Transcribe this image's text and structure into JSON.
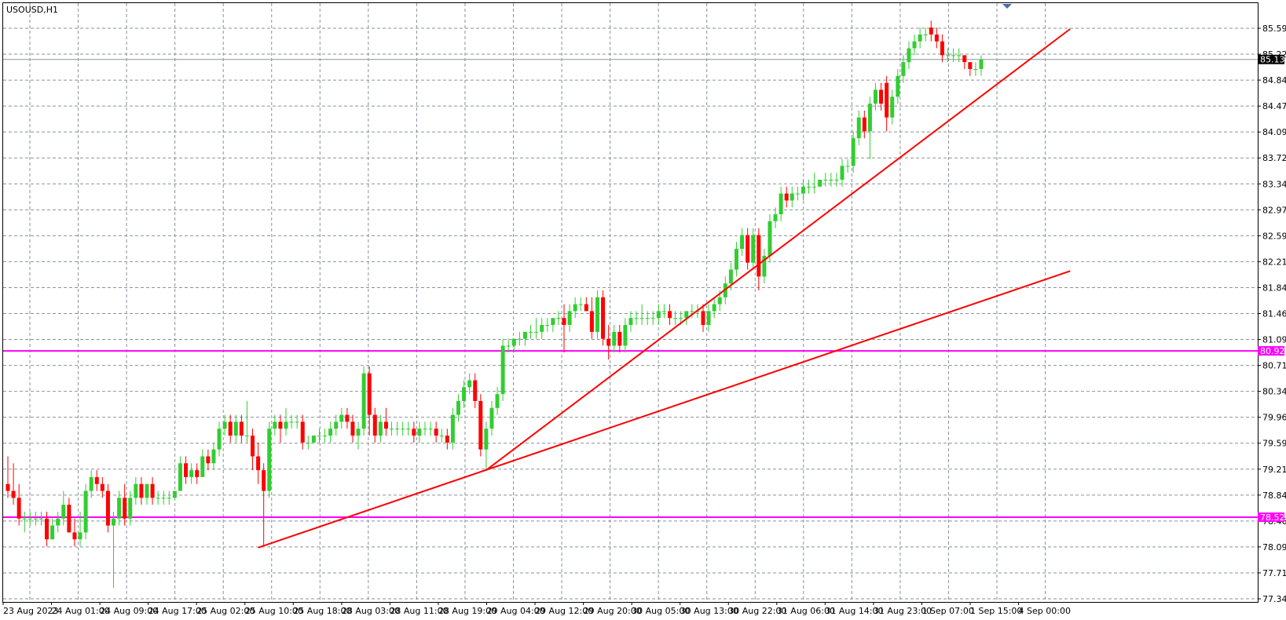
{
  "chart_data": {
    "type": "candlestick",
    "symbol_label": "USOUSD,H1",
    "ylim": [
      77.34,
      85.8
    ],
    "y_ticks": [
      "85.590",
      "85.220",
      "84.840",
      "84.470",
      "84.090",
      "83.720",
      "83.340",
      "82.970",
      "82.590",
      "82.210",
      "81.840",
      "81.460",
      "81.090",
      "80.710",
      "80.340",
      "79.960",
      "79.590",
      "79.210",
      "78.840",
      "78.460",
      "78.090",
      "77.710",
      "77.340"
    ],
    "x_ticks": [
      "23 Aug 2023",
      "24 Aug 01:00",
      "24 Aug 09:00",
      "24 Aug 17:00",
      "25 Aug 02:00",
      "25 Aug 10:00",
      "25 Aug 18:00",
      "28 Aug 03:00",
      "28 Aug 11:00",
      "28 Aug 19:00",
      "29 Aug 04:00",
      "29 Aug 12:00",
      "29 Aug 20:00",
      "30 Aug 05:00",
      "30 Aug 13:00",
      "30 Aug 22:00",
      "31 Aug 06:00",
      "31 Aug 14:00",
      "31 Aug 23:00",
      "1 Sep 07:00",
      "1 Sep 15:00",
      "4 Sep 00:00"
    ],
    "grid": true,
    "colors": {
      "bull": "#32cd32",
      "bear": "#ff0000",
      "trendline": "#ff0000",
      "hline": "#ff00ff",
      "grid": "#8a9299",
      "current_price": "#000000"
    },
    "current_price": "85.139",
    "horizontal_levels": [
      {
        "label": "80.925",
        "value": 80.925
      },
      {
        "label": "78.520",
        "value": 78.52
      }
    ],
    "trendlines": [
      {
        "from_bar": 45,
        "from_price": 78.08,
        "to_bar": 191,
        "to_price": 82.08
      },
      {
        "from_bar": 86,
        "from_price": 79.2,
        "to_bar": 191,
        "to_price": 85.58
      }
    ],
    "candles": [
      {
        "o": 79.0,
        "h": 79.4,
        "l": 78.8,
        "c": 78.9
      },
      {
        "o": 78.9,
        "h": 79.3,
        "l": 78.7,
        "c": 78.8
      },
      {
        "o": 78.8,
        "h": 79.0,
        "l": 78.4,
        "c": 78.5
      },
      {
        "o": 78.5,
        "h": 78.6,
        "l": 78.3,
        "c": 78.5
      },
      {
        "o": 78.5,
        "h": 78.6,
        "l": 78.4,
        "c": 78.5
      },
      {
        "o": 78.5,
        "h": 78.6,
        "l": 78.4,
        "c": 78.5
      },
      {
        "o": 78.5,
        "h": 78.6,
        "l": 78.4,
        "c": 78.5
      },
      {
        "o": 78.5,
        "h": 78.6,
        "l": 78.1,
        "c": 78.2
      },
      {
        "o": 78.2,
        "h": 78.5,
        "l": 78.2,
        "c": 78.4
      },
      {
        "o": 78.4,
        "h": 78.6,
        "l": 78.3,
        "c": 78.5
      },
      {
        "o": 78.5,
        "h": 78.9,
        "l": 78.4,
        "c": 78.7
      },
      {
        "o": 78.7,
        "h": 78.8,
        "l": 78.3,
        "c": 78.3
      },
      {
        "o": 78.3,
        "h": 78.5,
        "l": 78.1,
        "c": 78.2
      },
      {
        "o": 78.2,
        "h": 78.6,
        "l": 78.1,
        "c": 78.3
      },
      {
        "o": 78.3,
        "h": 79.0,
        "l": 78.2,
        "c": 78.9
      },
      {
        "o": 78.9,
        "h": 79.2,
        "l": 78.8,
        "c": 79.1
      },
      {
        "o": 79.1,
        "h": 79.2,
        "l": 78.9,
        "c": 79.0
      },
      {
        "o": 79.0,
        "h": 79.1,
        "l": 78.8,
        "c": 78.9
      },
      {
        "o": 78.9,
        "h": 79.0,
        "l": 78.3,
        "c": 78.4
      },
      {
        "o": 78.4,
        "h": 78.6,
        "l": 77.5,
        "c": 78.5
      },
      {
        "o": 78.5,
        "h": 78.9,
        "l": 78.4,
        "c": 78.8
      },
      {
        "o": 78.8,
        "h": 79.0,
        "l": 78.4,
        "c": 78.5
      },
      {
        "o": 78.5,
        "h": 78.9,
        "l": 78.4,
        "c": 78.8
      },
      {
        "o": 78.8,
        "h": 79.1,
        "l": 78.7,
        "c": 79.0
      },
      {
        "o": 79.0,
        "h": 79.1,
        "l": 78.7,
        "c": 78.8
      },
      {
        "o": 78.8,
        "h": 79.0,
        "l": 78.7,
        "c": 79.0
      },
      {
        "o": 79.0,
        "h": 79.1,
        "l": 78.7,
        "c": 78.8
      },
      {
        "o": 78.8,
        "h": 78.9,
        "l": 78.7,
        "c": 78.8
      },
      {
        "o": 78.8,
        "h": 78.9,
        "l": 78.7,
        "c": 78.8
      },
      {
        "o": 78.8,
        "h": 78.9,
        "l": 78.7,
        "c": 78.8
      },
      {
        "o": 78.8,
        "h": 78.9,
        "l": 78.8,
        "c": 78.9
      },
      {
        "o": 78.9,
        "h": 79.4,
        "l": 78.9,
        "c": 79.3
      },
      {
        "o": 79.3,
        "h": 79.4,
        "l": 79.0,
        "c": 79.1
      },
      {
        "o": 79.1,
        "h": 79.3,
        "l": 79.0,
        "c": 79.2
      },
      {
        "o": 79.2,
        "h": 79.3,
        "l": 79.0,
        "c": 79.1
      },
      {
        "o": 79.1,
        "h": 79.5,
        "l": 79.1,
        "c": 79.4
      },
      {
        "o": 79.4,
        "h": 79.5,
        "l": 79.2,
        "c": 79.3
      },
      {
        "o": 79.3,
        "h": 79.6,
        "l": 79.2,
        "c": 79.5
      },
      {
        "o": 79.5,
        "h": 79.9,
        "l": 79.4,
        "c": 79.8
      },
      {
        "o": 79.8,
        "h": 80.0,
        "l": 79.7,
        "c": 79.9
      },
      {
        "o": 79.9,
        "h": 80.0,
        "l": 79.6,
        "c": 79.7
      },
      {
        "o": 79.7,
        "h": 80.0,
        "l": 79.6,
        "c": 79.9
      },
      {
        "o": 79.9,
        "h": 80.0,
        "l": 79.6,
        "c": 79.7
      },
      {
        "o": 79.7,
        "h": 80.2,
        "l": 79.6,
        "c": 79.7
      },
      {
        "o": 79.7,
        "h": 79.8,
        "l": 79.2,
        "c": 79.4
      },
      {
        "o": 79.4,
        "h": 79.6,
        "l": 79.0,
        "c": 79.2
      },
      {
        "o": 79.2,
        "h": 79.3,
        "l": 78.1,
        "c": 78.9
      },
      {
        "o": 78.9,
        "h": 79.9,
        "l": 78.8,
        "c": 79.8
      },
      {
        "o": 79.8,
        "h": 80.0,
        "l": 79.7,
        "c": 79.9
      },
      {
        "o": 79.9,
        "h": 80.0,
        "l": 79.6,
        "c": 79.8
      },
      {
        "o": 79.8,
        "h": 80.1,
        "l": 79.7,
        "c": 79.9
      },
      {
        "o": 79.9,
        "h": 80.0,
        "l": 79.8,
        "c": 79.9
      },
      {
        "o": 79.9,
        "h": 80.0,
        "l": 79.8,
        "c": 79.9
      },
      {
        "o": 79.9,
        "h": 80.0,
        "l": 79.5,
        "c": 79.6
      },
      {
        "o": 79.6,
        "h": 79.7,
        "l": 79.5,
        "c": 79.6
      },
      {
        "o": 79.6,
        "h": 79.7,
        "l": 79.6,
        "c": 79.7
      },
      {
        "o": 79.7,
        "h": 79.8,
        "l": 79.6,
        "c": 79.7
      },
      {
        "o": 79.7,
        "h": 79.8,
        "l": 79.6,
        "c": 79.7
      },
      {
        "o": 79.7,
        "h": 79.9,
        "l": 79.6,
        "c": 79.8
      },
      {
        "o": 79.8,
        "h": 80.0,
        "l": 79.7,
        "c": 79.9
      },
      {
        "o": 79.9,
        "h": 80.1,
        "l": 79.8,
        "c": 80.0
      },
      {
        "o": 80.0,
        "h": 80.1,
        "l": 79.8,
        "c": 79.9
      },
      {
        "o": 79.9,
        "h": 80.0,
        "l": 79.6,
        "c": 79.7
      },
      {
        "o": 79.7,
        "h": 79.9,
        "l": 79.5,
        "c": 79.8
      },
      {
        "o": 79.8,
        "h": 80.7,
        "l": 79.7,
        "c": 80.6
      },
      {
        "o": 80.6,
        "h": 80.7,
        "l": 79.7,
        "c": 80.0
      },
      {
        "o": 80.0,
        "h": 80.1,
        "l": 79.6,
        "c": 79.7
      },
      {
        "o": 79.7,
        "h": 80.0,
        "l": 79.6,
        "c": 79.9
      },
      {
        "o": 79.9,
        "h": 80.1,
        "l": 79.7,
        "c": 79.8
      },
      {
        "o": 79.8,
        "h": 79.9,
        "l": 79.7,
        "c": 79.8
      },
      {
        "o": 79.8,
        "h": 79.9,
        "l": 79.7,
        "c": 79.8
      },
      {
        "o": 79.8,
        "h": 79.9,
        "l": 79.7,
        "c": 79.8
      },
      {
        "o": 79.8,
        "h": 79.9,
        "l": 79.7,
        "c": 79.8
      },
      {
        "o": 79.8,
        "h": 79.9,
        "l": 79.6,
        "c": 79.7
      },
      {
        "o": 79.7,
        "h": 79.9,
        "l": 79.6,
        "c": 79.8
      },
      {
        "o": 79.8,
        "h": 79.9,
        "l": 79.7,
        "c": 79.8
      },
      {
        "o": 79.8,
        "h": 79.9,
        "l": 79.7,
        "c": 79.8
      },
      {
        "o": 79.8,
        "h": 79.9,
        "l": 79.6,
        "c": 79.7
      },
      {
        "o": 79.7,
        "h": 79.8,
        "l": 79.6,
        "c": 79.7
      },
      {
        "o": 79.7,
        "h": 79.8,
        "l": 79.5,
        "c": 79.6
      },
      {
        "o": 79.6,
        "h": 80.1,
        "l": 79.5,
        "c": 80.0
      },
      {
        "o": 80.0,
        "h": 80.3,
        "l": 79.9,
        "c": 80.2
      },
      {
        "o": 80.2,
        "h": 80.5,
        "l": 80.1,
        "c": 80.4
      },
      {
        "o": 80.4,
        "h": 80.6,
        "l": 80.3,
        "c": 80.5
      },
      {
        "o": 80.5,
        "h": 80.6,
        "l": 80.1,
        "c": 80.2
      },
      {
        "o": 80.2,
        "h": 80.3,
        "l": 79.4,
        "c": 79.5
      },
      {
        "o": 79.5,
        "h": 79.9,
        "l": 79.2,
        "c": 79.8
      },
      {
        "o": 79.8,
        "h": 80.2,
        "l": 79.7,
        "c": 80.1
      },
      {
        "o": 80.1,
        "h": 80.4,
        "l": 80.0,
        "c": 80.3
      },
      {
        "o": 80.3,
        "h": 81.1,
        "l": 80.2,
        "c": 81.0
      },
      {
        "o": 81.0,
        "h": 81.1,
        "l": 80.9,
        "c": 81.0
      },
      {
        "o": 81.0,
        "h": 81.1,
        "l": 80.9,
        "c": 81.1
      },
      {
        "o": 81.1,
        "h": 81.2,
        "l": 81.0,
        "c": 81.1
      },
      {
        "o": 81.1,
        "h": 81.2,
        "l": 81.0,
        "c": 81.2
      },
      {
        "o": 81.2,
        "h": 81.3,
        "l": 81.1,
        "c": 81.2
      },
      {
        "o": 81.2,
        "h": 81.4,
        "l": 81.1,
        "c": 81.2
      },
      {
        "o": 81.2,
        "h": 81.4,
        "l": 81.1,
        "c": 81.3
      },
      {
        "o": 81.3,
        "h": 81.4,
        "l": 81.2,
        "c": 81.3
      },
      {
        "o": 81.3,
        "h": 81.4,
        "l": 81.2,
        "c": 81.4
      },
      {
        "o": 81.4,
        "h": 81.5,
        "l": 81.3,
        "c": 81.4
      },
      {
        "o": 81.4,
        "h": 81.6,
        "l": 80.9,
        "c": 81.3
      },
      {
        "o": 81.3,
        "h": 81.6,
        "l": 81.2,
        "c": 81.5
      },
      {
        "o": 81.5,
        "h": 81.7,
        "l": 81.4,
        "c": 81.6
      },
      {
        "o": 81.6,
        "h": 81.7,
        "l": 81.5,
        "c": 81.6
      },
      {
        "o": 81.6,
        "h": 81.7,
        "l": 81.5,
        "c": 81.5
      },
      {
        "o": 81.5,
        "h": 81.7,
        "l": 81.1,
        "c": 81.2
      },
      {
        "o": 81.2,
        "h": 81.8,
        "l": 81.1,
        "c": 81.7
      },
      {
        "o": 81.7,
        "h": 81.8,
        "l": 81.0,
        "c": 81.1
      },
      {
        "o": 81.1,
        "h": 81.3,
        "l": 80.8,
        "c": 81.0
      },
      {
        "o": 81.0,
        "h": 81.3,
        "l": 80.9,
        "c": 81.2
      },
      {
        "o": 81.2,
        "h": 81.3,
        "l": 80.9,
        "c": 81.0
      },
      {
        "o": 81.0,
        "h": 81.4,
        "l": 80.9,
        "c": 81.3
      },
      {
        "o": 81.3,
        "h": 81.5,
        "l": 81.2,
        "c": 81.4
      },
      {
        "o": 81.4,
        "h": 81.5,
        "l": 81.3,
        "c": 81.4
      },
      {
        "o": 81.4,
        "h": 81.6,
        "l": 81.3,
        "c": 81.4
      },
      {
        "o": 81.4,
        "h": 81.5,
        "l": 81.3,
        "c": 81.4
      },
      {
        "o": 81.4,
        "h": 81.5,
        "l": 81.3,
        "c": 81.4
      },
      {
        "o": 81.4,
        "h": 81.6,
        "l": 81.3,
        "c": 81.5
      },
      {
        "o": 81.5,
        "h": 81.6,
        "l": 81.4,
        "c": 81.5
      },
      {
        "o": 81.5,
        "h": 81.6,
        "l": 81.3,
        "c": 81.4
      },
      {
        "o": 81.4,
        "h": 81.5,
        "l": 81.3,
        "c": 81.4
      },
      {
        "o": 81.4,
        "h": 81.5,
        "l": 81.3,
        "c": 81.4
      },
      {
        "o": 81.4,
        "h": 81.5,
        "l": 81.3,
        "c": 81.5
      },
      {
        "o": 81.5,
        "h": 81.6,
        "l": 81.4,
        "c": 81.5
      },
      {
        "o": 81.5,
        "h": 81.6,
        "l": 81.4,
        "c": 81.5
      },
      {
        "o": 81.5,
        "h": 81.6,
        "l": 81.2,
        "c": 81.3
      },
      {
        "o": 81.3,
        "h": 81.6,
        "l": 81.2,
        "c": 81.5
      },
      {
        "o": 81.5,
        "h": 81.7,
        "l": 81.4,
        "c": 81.6
      },
      {
        "o": 81.6,
        "h": 81.8,
        "l": 81.5,
        "c": 81.7
      },
      {
        "o": 81.7,
        "h": 82.0,
        "l": 81.6,
        "c": 81.9
      },
      {
        "o": 81.9,
        "h": 82.2,
        "l": 81.8,
        "c": 82.1
      },
      {
        "o": 82.1,
        "h": 82.5,
        "l": 82.0,
        "c": 82.4
      },
      {
        "o": 82.4,
        "h": 82.7,
        "l": 82.3,
        "c": 82.6
      },
      {
        "o": 82.6,
        "h": 82.7,
        "l": 82.1,
        "c": 82.2
      },
      {
        "o": 82.2,
        "h": 82.7,
        "l": 82.1,
        "c": 82.6
      },
      {
        "o": 82.6,
        "h": 82.7,
        "l": 81.8,
        "c": 82.0
      },
      {
        "o": 82.0,
        "h": 82.4,
        "l": 81.9,
        "c": 82.3
      },
      {
        "o": 82.3,
        "h": 82.9,
        "l": 82.2,
        "c": 82.8
      },
      {
        "o": 82.8,
        "h": 83.0,
        "l": 82.7,
        "c": 82.9
      },
      {
        "o": 82.9,
        "h": 83.3,
        "l": 82.8,
        "c": 83.2
      },
      {
        "o": 83.2,
        "h": 83.3,
        "l": 83.0,
        "c": 83.1
      },
      {
        "o": 83.1,
        "h": 83.3,
        "l": 83.0,
        "c": 83.2
      },
      {
        "o": 83.2,
        "h": 83.3,
        "l": 83.1,
        "c": 83.2
      },
      {
        "o": 83.2,
        "h": 83.4,
        "l": 83.1,
        "c": 83.3
      },
      {
        "o": 83.3,
        "h": 83.4,
        "l": 83.2,
        "c": 83.3
      },
      {
        "o": 83.3,
        "h": 83.5,
        "l": 83.2,
        "c": 83.3
      },
      {
        "o": 83.3,
        "h": 83.4,
        "l": 83.3,
        "c": 83.4
      },
      {
        "o": 83.4,
        "h": 83.5,
        "l": 83.3,
        "c": 83.4
      },
      {
        "o": 83.4,
        "h": 83.5,
        "l": 83.3,
        "c": 83.4
      },
      {
        "o": 83.4,
        "h": 83.5,
        "l": 83.3,
        "c": 83.4
      },
      {
        "o": 83.4,
        "h": 83.7,
        "l": 83.3,
        "c": 83.6
      },
      {
        "o": 83.6,
        "h": 83.7,
        "l": 83.5,
        "c": 83.6
      },
      {
        "o": 83.6,
        "h": 84.1,
        "l": 83.5,
        "c": 84.0
      },
      {
        "o": 84.0,
        "h": 84.4,
        "l": 83.9,
        "c": 84.3
      },
      {
        "o": 84.3,
        "h": 84.4,
        "l": 84.0,
        "c": 84.1
      },
      {
        "o": 84.1,
        "h": 84.6,
        "l": 83.7,
        "c": 84.5
      },
      {
        "o": 84.5,
        "h": 84.8,
        "l": 84.4,
        "c": 84.7
      },
      {
        "o": 84.7,
        "h": 84.8,
        "l": 84.4,
        "c": 84.5
      },
      {
        "o": 84.8,
        "h": 84.9,
        "l": 84.1,
        "c": 84.3
      },
      {
        "o": 84.3,
        "h": 84.7,
        "l": 84.2,
        "c": 84.6
      },
      {
        "o": 84.6,
        "h": 85.0,
        "l": 84.5,
        "c": 84.9
      },
      {
        "o": 84.9,
        "h": 85.2,
        "l": 84.8,
        "c": 85.1
      },
      {
        "o": 85.1,
        "h": 85.4,
        "l": 85.0,
        "c": 85.3
      },
      {
        "o": 85.3,
        "h": 85.5,
        "l": 85.2,
        "c": 85.4
      },
      {
        "o": 85.4,
        "h": 85.6,
        "l": 85.3,
        "c": 85.5
      },
      {
        "o": 85.5,
        "h": 85.6,
        "l": 85.4,
        "c": 85.5
      },
      {
        "o": 85.6,
        "h": 85.7,
        "l": 85.4,
        "c": 85.5
      },
      {
        "o": 85.5,
        "h": 85.6,
        "l": 85.3,
        "c": 85.4
      },
      {
        "o": 85.4,
        "h": 85.5,
        "l": 85.1,
        "c": 85.2
      },
      {
        "o": 85.2,
        "h": 85.3,
        "l": 85.1,
        "c": 85.2
      },
      {
        "o": 85.2,
        "h": 85.3,
        "l": 85.1,
        "c": 85.2
      },
      {
        "o": 85.2,
        "h": 85.3,
        "l": 85.1,
        "c": 85.2
      },
      {
        "o": 85.2,
        "h": 85.2,
        "l": 85.0,
        "c": 85.1
      },
      {
        "o": 85.1,
        "h": 85.1,
        "l": 84.9,
        "c": 85.0
      },
      {
        "o": 85.0,
        "h": 85.1,
        "l": 84.9,
        "c": 85.0
      },
      {
        "o": 85.0,
        "h": 85.2,
        "l": 84.9,
        "c": 85.14
      }
    ]
  }
}
